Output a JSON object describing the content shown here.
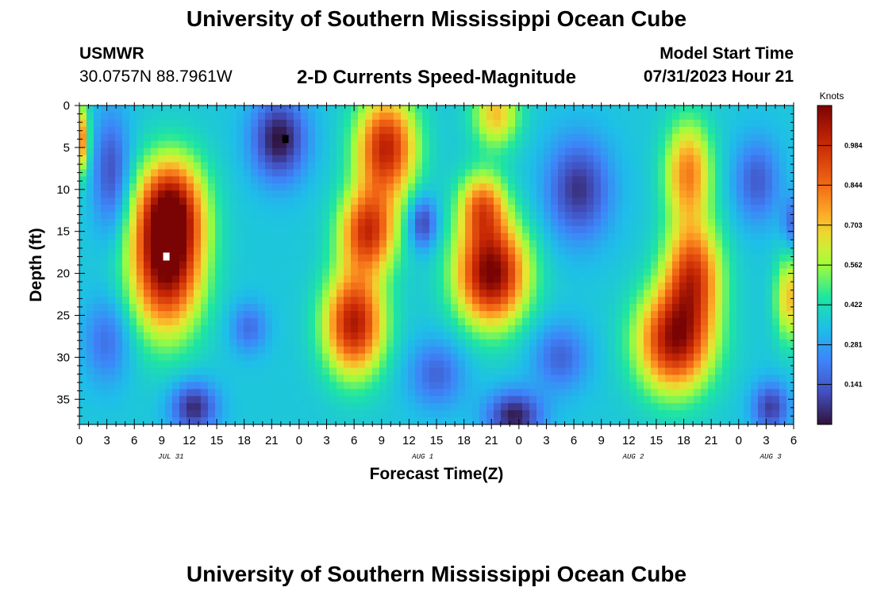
{
  "header": {
    "title": "University of Southern Mississippi Ocean Cube",
    "station_name": "USMWR",
    "station_coords": "30.0757N  88.7961W",
    "subtitle": "2-D Currents Speed-Magnitude",
    "start_label": "Model Start Time",
    "start_value": "07/31/2023 Hour 21"
  },
  "footer": {
    "title": "University of Southern Mississippi Ocean Cube"
  },
  "chart_data": {
    "type": "heatmap",
    "xlabel": "Forecast Time(Z)",
    "ylabel": "Depth (ft)",
    "x_range_hours": [
      0,
      78
    ],
    "y_range_ft": [
      0,
      38
    ],
    "y_ticks": [
      0,
      5,
      10,
      15,
      20,
      25,
      30,
      35
    ],
    "x_tick_labels": [
      "0",
      "3",
      "6",
      "9",
      "12",
      "15",
      "18",
      "21",
      "0",
      "3",
      "6",
      "9",
      "12",
      "15",
      "18",
      "21",
      "0",
      "3",
      "6",
      "9",
      "12",
      "15",
      "18",
      "21",
      "0",
      "3",
      "6"
    ],
    "date_labels": [
      {
        "text": "JUL 31",
        "hour": 10
      },
      {
        "text": "AUG 1",
        "hour": 37.5
      },
      {
        "text": "AUG 2",
        "hour": 60.5
      },
      {
        "text": "AUG 3",
        "hour": 75.5
      }
    ],
    "colorbar": {
      "title": "Knots",
      "ticks": [
        0.141,
        0.281,
        0.422,
        0.562,
        0.703,
        0.844,
        0.984
      ],
      "labels": [
        "0.141",
        "0.281",
        "0.422",
        "0.562",
        "0.703",
        "0.844",
        "0.984"
      ],
      "range": [
        0.0,
        1.125
      ]
    },
    "base_speed": 0.36,
    "features": [
      {
        "name": "core-jul31-morning",
        "hour": 9.5,
        "depth": 19,
        "speed": 0.74,
        "width_h": 3.8,
        "height_ft": 8
      },
      {
        "name": "core-jul31-upper",
        "hour": 10,
        "depth": 12,
        "speed": 0.55,
        "width_h": 3.5,
        "height_ft": 6
      },
      {
        "name": "core-aug1-lower",
        "hour": 30,
        "depth": 26,
        "speed": 0.68,
        "width_h": 3.2,
        "height_ft": 6
      },
      {
        "name": "core-aug1-upper",
        "hour": 33.5,
        "depth": 5,
        "speed": 0.65,
        "width_h": 3.2,
        "height_ft": 6
      },
      {
        "name": "core-aug1-mid",
        "hour": 31.5,
        "depth": 15,
        "speed": 0.6,
        "width_h": 3,
        "height_ft": 5
      },
      {
        "name": "core-aug1-evening",
        "hour": 45,
        "depth": 20,
        "speed": 0.78,
        "width_h": 3.8,
        "height_ft": 6
      },
      {
        "name": "core-aug1-evening-upper",
        "hour": 44,
        "depth": 12,
        "speed": 0.45,
        "width_h": 2.5,
        "height_ft": 4
      },
      {
        "name": "core-aug1-surface",
        "hour": 45.5,
        "depth": 1,
        "speed": 0.35,
        "width_h": 2.5,
        "height_ft": 4
      },
      {
        "name": "core-aug2-lower",
        "hour": 65,
        "depth": 28,
        "speed": 0.7,
        "width_h": 4,
        "height_ft": 6
      },
      {
        "name": "core-aug2-mid",
        "hour": 67,
        "depth": 20,
        "speed": 0.55,
        "width_h": 3,
        "height_ft": 6
      },
      {
        "name": "core-aug2-upper",
        "hour": 66.5,
        "depth": 8,
        "speed": 0.45,
        "width_h": 2.5,
        "height_ft": 6
      },
      {
        "name": "core-aug3-edge",
        "hour": 77.5,
        "depth": 23,
        "speed": 0.35,
        "width_h": 1.5,
        "height_ft": 5
      },
      {
        "name": "core-start-edge",
        "hour": 0,
        "depth": 4,
        "speed": 0.5,
        "width_h": 1,
        "height_ft": 4
      },
      {
        "name": "low-jul31-night",
        "hour": 21.8,
        "depth": 4,
        "speed": -0.36,
        "width_h": 3,
        "height_ft": 5
      },
      {
        "name": "low-jul31-upper",
        "hour": 3.5,
        "depth": 8,
        "speed": -0.25,
        "width_h": 2,
        "height_ft": 7
      },
      {
        "name": "low-jul31-bottom",
        "hour": 12.5,
        "depth": 36,
        "speed": -0.32,
        "width_h": 2.5,
        "height_ft": 3
      },
      {
        "name": "low-jul31-deep",
        "hour": 18.5,
        "depth": 26.5,
        "speed": -0.18,
        "width_h": 2,
        "height_ft": 3
      },
      {
        "name": "low-aug1-early",
        "hour": 3,
        "depth": 28,
        "speed": -0.18,
        "width_h": 2.5,
        "height_ft": 5
      },
      {
        "name": "low-aug1-gap",
        "hour": 37.5,
        "depth": 14,
        "speed": -0.28,
        "width_h": 1.5,
        "height_ft": 3
      },
      {
        "name": "low-aug1-deep",
        "hour": 39,
        "depth": 32,
        "speed": -0.2,
        "width_h": 3,
        "height_ft": 4
      },
      {
        "name": "low-aug2-bottom",
        "hour": 47.5,
        "depth": 37,
        "speed": -0.34,
        "width_h": 3,
        "height_ft": 3
      },
      {
        "name": "low-aug2-upper",
        "hour": 54.5,
        "depth": 10,
        "speed": -0.3,
        "width_h": 3.5,
        "height_ft": 6
      },
      {
        "name": "low-aug2-deep",
        "hour": 52.5,
        "depth": 30,
        "speed": -0.2,
        "width_h": 3,
        "height_ft": 4
      },
      {
        "name": "low-aug3-upper",
        "hour": 74,
        "depth": 9,
        "speed": -0.22,
        "width_h": 2.5,
        "height_ft": 5
      },
      {
        "name": "low-aug3-bottom",
        "hour": 75.5,
        "depth": 36,
        "speed": -0.28,
        "width_h": 2,
        "height_ft": 3
      },
      {
        "name": "low-aug3-edge",
        "hour": 78,
        "depth": 14,
        "speed": -0.2,
        "width_h": 1.2,
        "height_ft": 3
      }
    ],
    "markers": [
      {
        "name": "max-speed-marker",
        "hour": 9.5,
        "depth": 18,
        "color": "#ffffff"
      },
      {
        "name": "min-speed-marker",
        "hour": 22.5,
        "depth": 4,
        "color": "#000000"
      }
    ]
  }
}
